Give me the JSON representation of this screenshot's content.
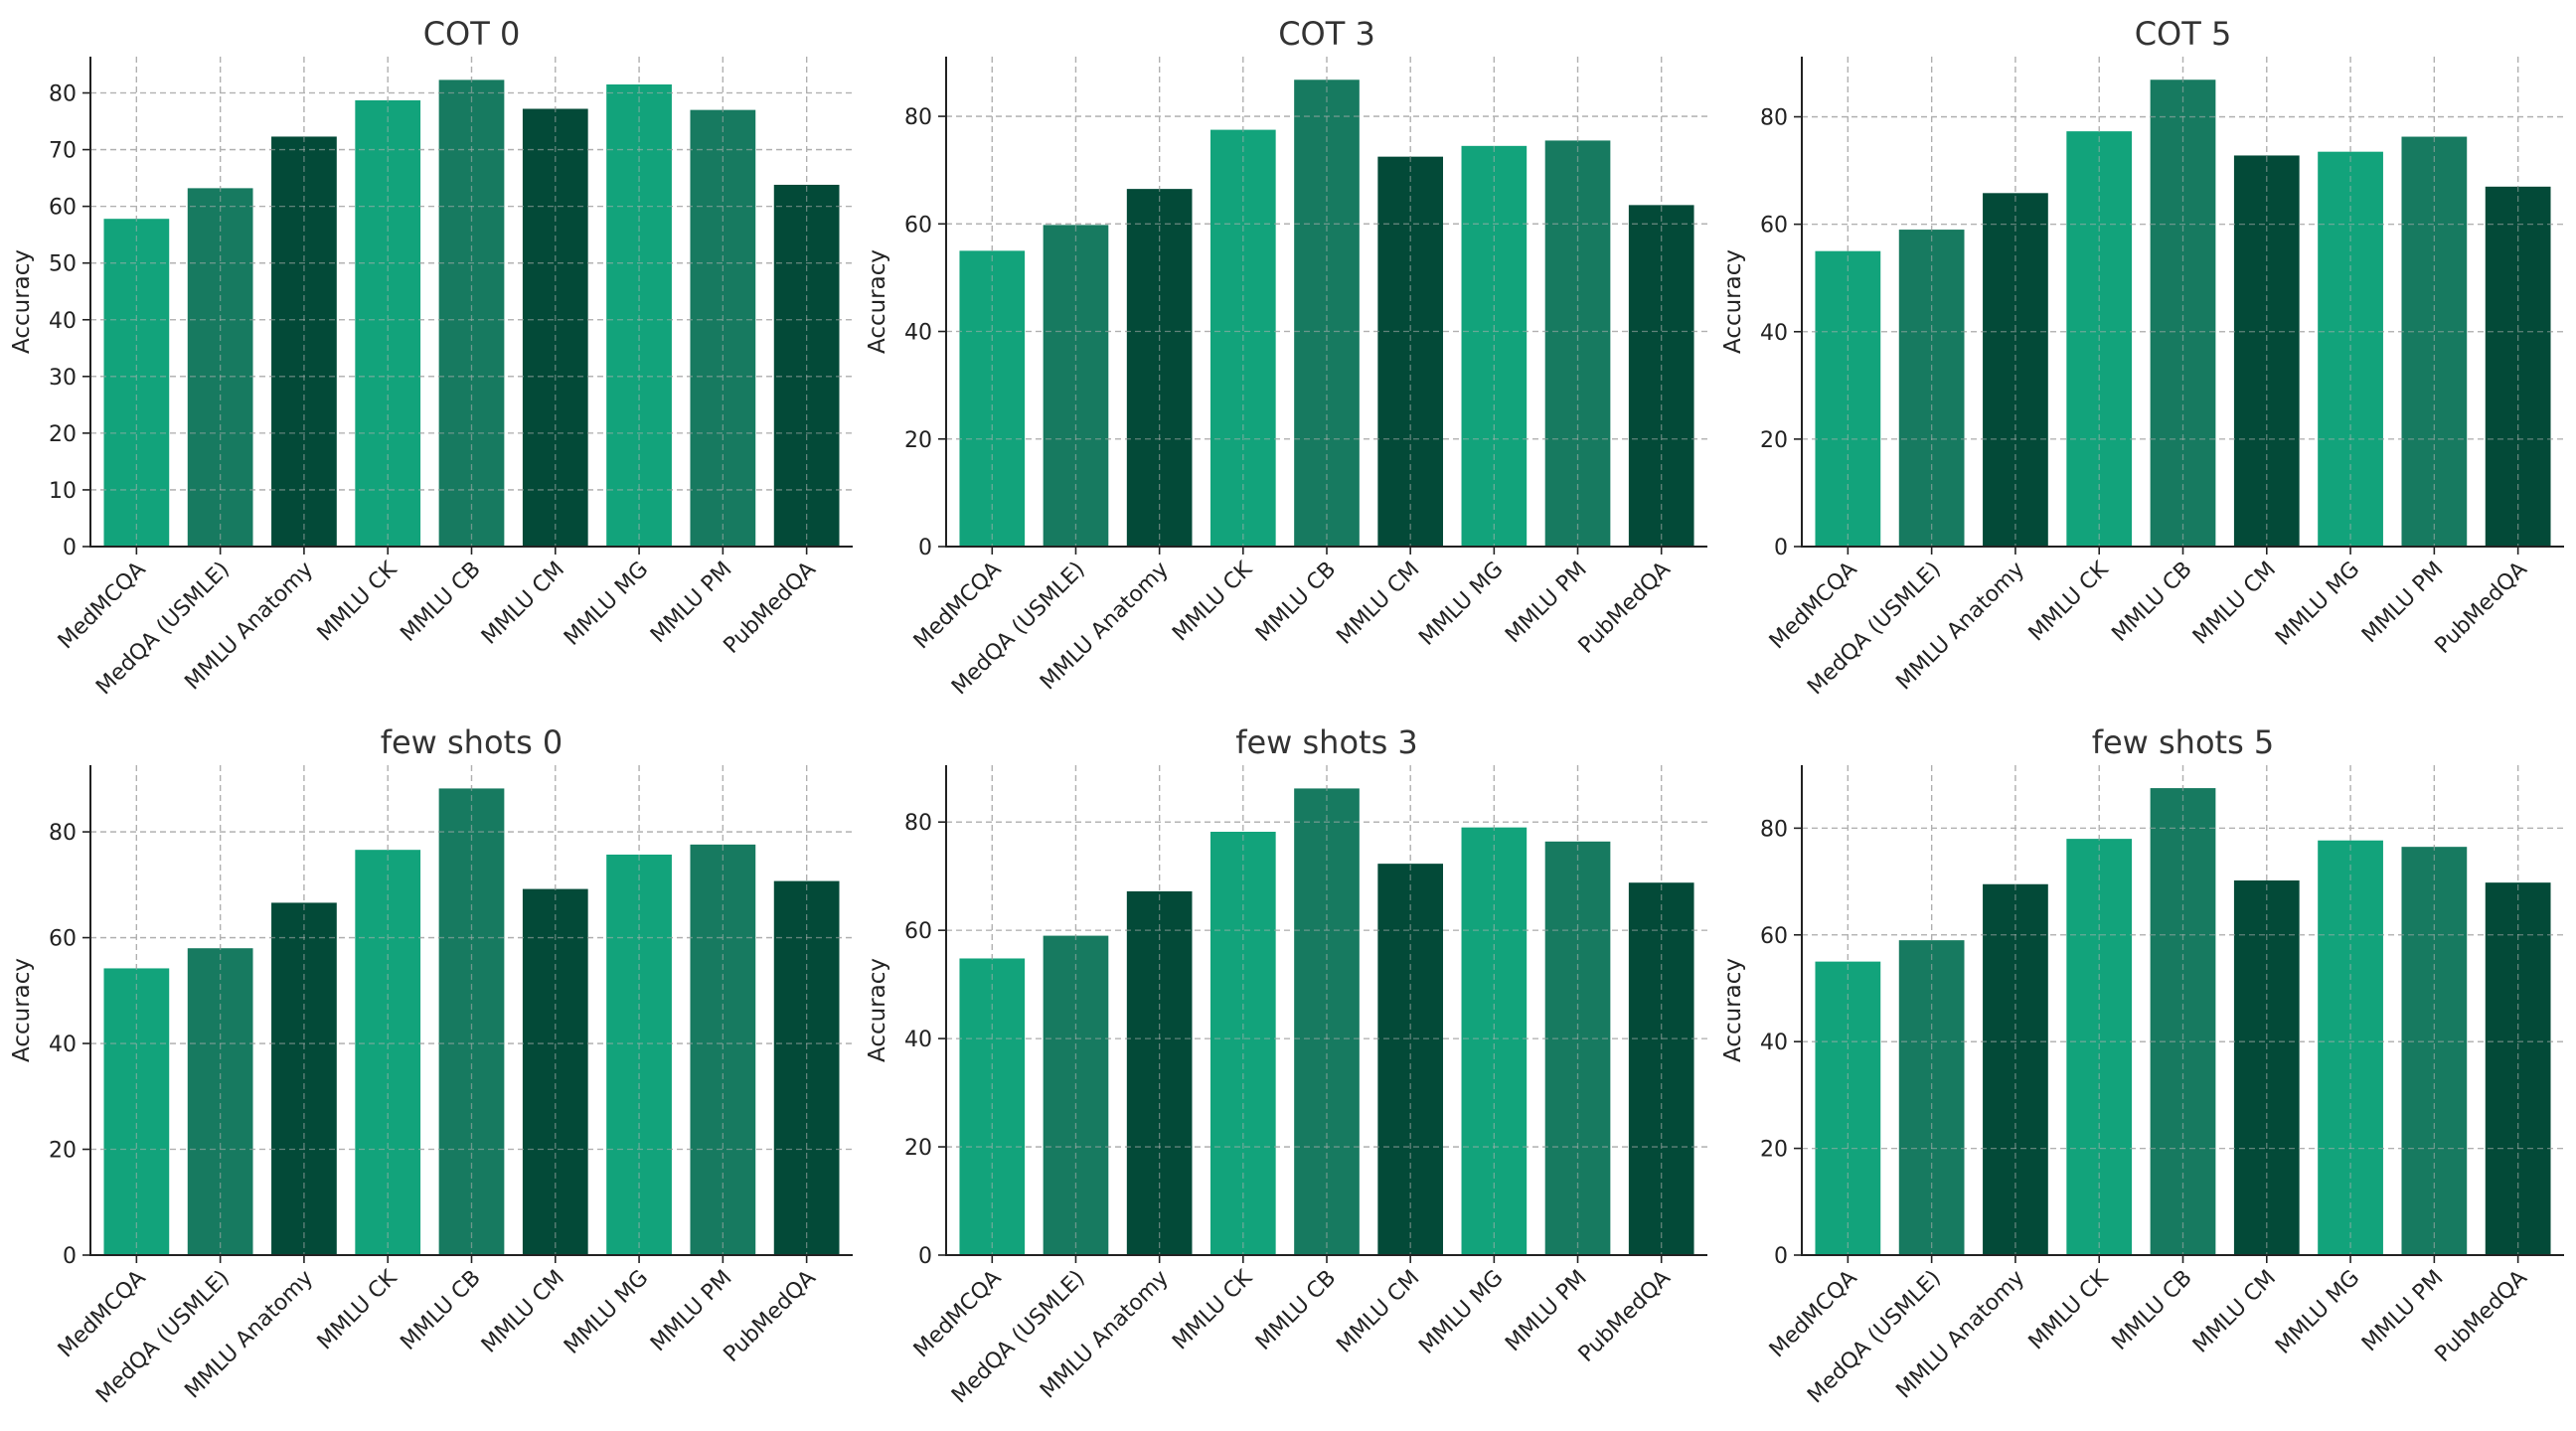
{
  "colors": {
    "light": "#12a37b",
    "mid": "#177a60",
    "dark": "#034a38"
  },
  "bar_color_cycle": [
    "light",
    "mid",
    "dark"
  ],
  "chart_data": [
    {
      "type": "bar",
      "title": "COT 0",
      "ylabel": "Accuracy",
      "xlabel": "",
      "categories": [
        "MedMCQA",
        "MedQA (USMLE)",
        "MMLU Anatomy",
        "MMLU CK",
        "MMLU CB",
        "MMLU CM",
        "MMLU MG",
        "MMLU PM",
        "PubMedQA"
      ],
      "values": [
        57.8,
        63.2,
        72.3,
        78.7,
        82.3,
        77.2,
        81.5,
        77.0,
        63.8
      ],
      "ylim": [
        0,
        86.4
      ],
      "yticks": [
        0,
        10,
        20,
        30,
        40,
        50,
        60,
        70,
        80
      ],
      "grid": true
    },
    {
      "type": "bar",
      "title": "COT 3",
      "ylabel": "Accuracy",
      "xlabel": "",
      "categories": [
        "MedMCQA",
        "MedQA (USMLE)",
        "MMLU Anatomy",
        "MMLU CK",
        "MMLU CB",
        "MMLU CM",
        "MMLU MG",
        "MMLU PM",
        "PubMedQA"
      ],
      "values": [
        55.0,
        59.8,
        66.5,
        77.5,
        86.8,
        72.5,
        74.5,
        75.5,
        63.5
      ],
      "ylim": [
        0,
        91.1
      ],
      "yticks": [
        0,
        20,
        40,
        60,
        80
      ],
      "grid": true
    },
    {
      "type": "bar",
      "title": "COT 5",
      "ylabel": "Accuracy",
      "xlabel": "",
      "categories": [
        "MedMCQA",
        "MedQA (USMLE)",
        "MMLU Anatomy",
        "MMLU CK",
        "MMLU CB",
        "MMLU CM",
        "MMLU MG",
        "MMLU PM",
        "PubMedQA"
      ],
      "values": [
        55.0,
        59.0,
        65.8,
        77.3,
        86.9,
        72.8,
        73.5,
        76.3,
        67.0
      ],
      "ylim": [
        0,
        91.2
      ],
      "yticks": [
        0,
        20,
        40,
        60,
        80
      ],
      "grid": true
    },
    {
      "type": "bar",
      "title": "few shots 0",
      "ylabel": "Accuracy",
      "xlabel": "",
      "categories": [
        "MedMCQA",
        "MedQA (USMLE)",
        "MMLU Anatomy",
        "MMLU CK",
        "MMLU CB",
        "MMLU CM",
        "MMLU MG",
        "MMLU PM",
        "PubMedQA"
      ],
      "values": [
        54.2,
        58.0,
        66.6,
        76.6,
        88.2,
        69.2,
        75.7,
        77.6,
        70.7
      ],
      "ylim": [
        0,
        92.6
      ],
      "yticks": [
        0,
        20,
        40,
        60,
        80
      ],
      "grid": true
    },
    {
      "type": "bar",
      "title": "few shots 3",
      "ylabel": "Accuracy",
      "xlabel": "",
      "categories": [
        "MedMCQA",
        "MedQA (USMLE)",
        "MMLU Anatomy",
        "MMLU CK",
        "MMLU CB",
        "MMLU CM",
        "MMLU MG",
        "MMLU PM",
        "PubMedQA"
      ],
      "values": [
        54.8,
        59.0,
        67.2,
        78.2,
        86.2,
        72.3,
        79.0,
        76.4,
        68.8
      ],
      "ylim": [
        0,
        90.5
      ],
      "yticks": [
        0,
        20,
        40,
        60,
        80
      ],
      "grid": true
    },
    {
      "type": "bar",
      "title": "few shots 5",
      "ylabel": "Accuracy",
      "xlabel": "",
      "categories": [
        "MedMCQA",
        "MedQA (USMLE)",
        "MMLU Anatomy",
        "MMLU CK",
        "MMLU CB",
        "MMLU CM",
        "MMLU MG",
        "MMLU PM",
        "PubMedQA"
      ],
      "values": [
        55.0,
        59.0,
        69.5,
        78.0,
        87.5,
        70.2,
        77.7,
        76.5,
        69.8
      ],
      "ylim": [
        0,
        91.8
      ],
      "yticks": [
        0,
        20,
        40,
        60,
        80
      ],
      "grid": true
    }
  ]
}
